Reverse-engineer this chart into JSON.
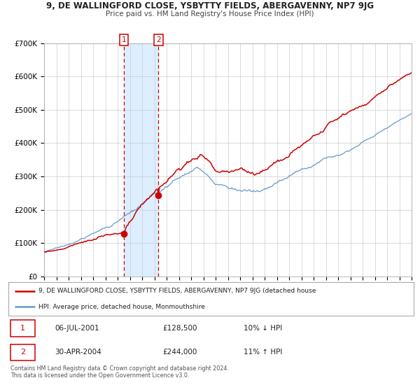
{
  "title": "9, DE WALLINGFORD CLOSE, YSBYTTY FIELDS, ABERGAVENNY, NP7 9JG",
  "subtitle": "Price paid vs. HM Land Registry's House Price Index (HPI)",
  "legend_line1": "9, DE WALLINGFORD CLOSE, YSBYTTY FIELDS, ABERGAVENNY, NP7 9JG (detached house",
  "legend_line2": "HPI: Average price, detached house, Monmouthshire",
  "footer": "Contains HM Land Registry data © Crown copyright and database right 2024.\nThis data is licensed under the Open Government Licence v3.0.",
  "sale1_date": "06-JUL-2001",
  "sale1_price": 128500,
  "sale1_hpi": "10% ↓ HPI",
  "sale2_date": "30-APR-2004",
  "sale2_price": 244000,
  "sale2_hpi": "11% ↑ HPI",
  "sale1_x": 2001.51,
  "sale2_x": 2004.33,
  "shade_x1": 2001.51,
  "shade_x2": 2004.33,
  "red_color": "#cc0000",
  "blue_color": "#6699cc",
  "shade_color": "#ddeeff",
  "dashed_color": "#cc0000",
  "grid_color": "#cccccc",
  "ylim_min": 0,
  "ylim_max": 700000,
  "xlim_min": 1995,
  "xlim_max": 2025,
  "yticks": [
    0,
    100000,
    200000,
    300000,
    400000,
    500000,
    600000,
    700000
  ],
  "ytick_labels": [
    "£0",
    "£100K",
    "£200K",
    "£300K",
    "£400K",
    "£500K",
    "£600K",
    "£700K"
  ]
}
